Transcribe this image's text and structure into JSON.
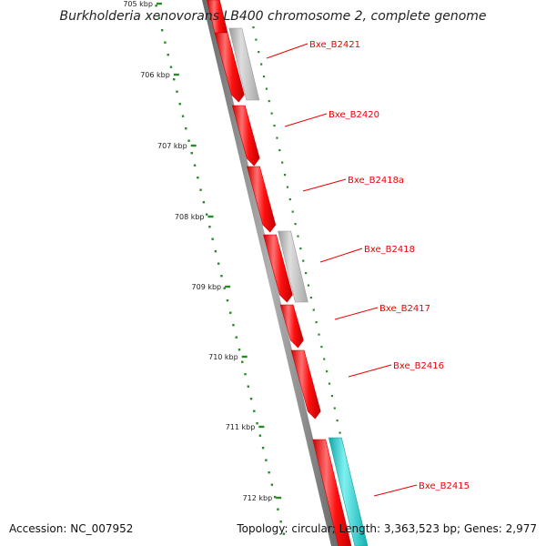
{
  "title": "Burkholderia xenovorans LB400 chromosome 2, complete genome",
  "footer": {
    "accession": "Accession: NC_007952",
    "stats": "Topology: circular; Length: 3,363,523 bp; Genes: 2,977"
  },
  "ruler": {
    "ticks": [
      "705 kbp",
      "706 kbp",
      "707 kbp",
      "708 kbp",
      "709 kbp",
      "710 kbp",
      "711 kbp",
      "712 kbp"
    ]
  },
  "genes": [
    {
      "label": "Bxe_B2421"
    },
    {
      "label": "Bxe_B2420"
    },
    {
      "label": "Bxe_B2418a"
    },
    {
      "label": "Bxe_B2418"
    },
    {
      "label": "Bxe_B2417"
    },
    {
      "label": "Bxe_B2416"
    },
    {
      "label": "Bxe_B2415"
    }
  ],
  "colors": {
    "cds": "#ff0000",
    "trna": "#bbbbbb",
    "other_feature": "#20c8c8",
    "backbone": "#808080",
    "ruler_dots": "#2a8a2a",
    "label": "#ee0000"
  }
}
